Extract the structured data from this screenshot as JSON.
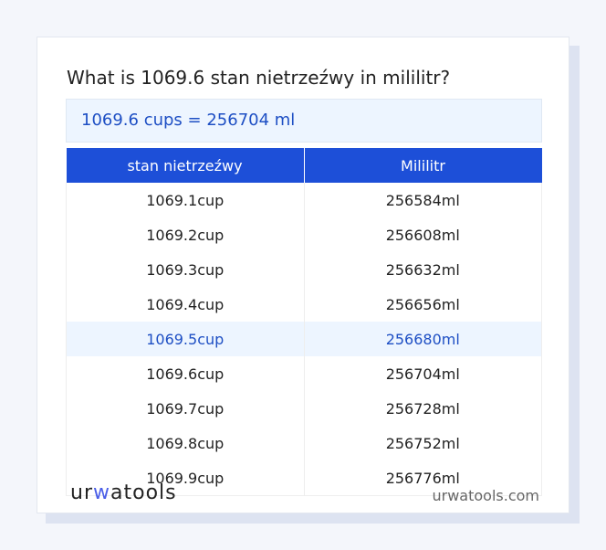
{
  "title": "What is 1069.6 stan nietrzeźwy in mililitr?",
  "result": "1069.6 cups = 256704 ml",
  "headers": [
    "stan nietrzeźwy",
    "Mililitr"
  ],
  "rows": [
    [
      "1069.1cup",
      "256584ml"
    ],
    [
      "1069.2cup",
      "256608ml"
    ],
    [
      "1069.3cup",
      "256632ml"
    ],
    [
      "1069.4cup",
      "256656ml"
    ],
    [
      "1069.5cup",
      "256680ml"
    ],
    [
      "1069.6cup",
      "256704ml"
    ],
    [
      "1069.7cup",
      "256728ml"
    ],
    [
      "1069.8cup",
      "256752ml"
    ],
    [
      "1069.9cup",
      "256776ml"
    ]
  ],
  "highlight_row": 4,
  "logo": {
    "a": "ur",
    "b": "w",
    "c": "atools"
  },
  "site": "urwatools.com"
}
